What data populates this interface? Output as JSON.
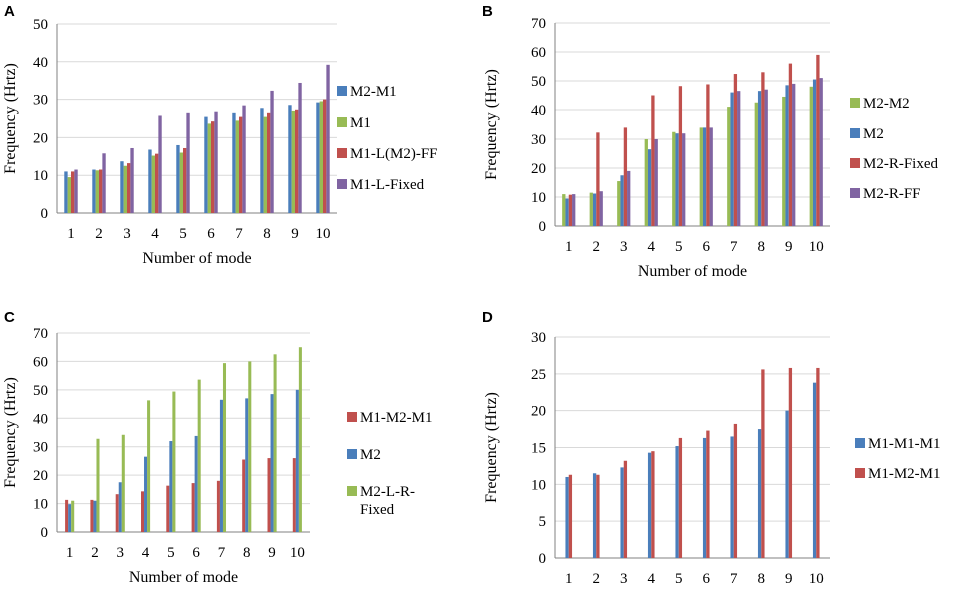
{
  "chart_data": [
    {
      "panel": "A",
      "type": "bar",
      "xlabel": "Number of mode",
      "ylabel": "Frequency (Hrtz)",
      "ylim": [
        0,
        50
      ],
      "yticks": [
        "0",
        "10",
        "20",
        "30",
        "40",
        "50"
      ],
      "categories": [
        "1",
        "2",
        "3",
        "4",
        "5",
        "6",
        "7",
        "8",
        "9",
        "10"
      ],
      "series": [
        {
          "name": "M2-M1",
          "color": "#4a7ebb",
          "values": [
            11,
            11.5,
            13.7,
            16.8,
            18,
            25.5,
            26.5,
            27.7,
            28.5,
            29.2
          ]
        },
        {
          "name": "M1",
          "color": "#98bb55",
          "values": [
            9.5,
            11.3,
            12.5,
            15.2,
            16,
            23.7,
            24.5,
            25.5,
            27,
            29.5
          ]
        },
        {
          "name": "M1-L(M2)-FF",
          "color": "#c0504d",
          "values": [
            11,
            11.5,
            13.2,
            15.7,
            17.2,
            24.3,
            25.5,
            26.5,
            27.3,
            30
          ]
        },
        {
          "name": "M1-L-Fixed",
          "color": "#8064a2",
          "values": [
            11.5,
            15.8,
            17.2,
            25.8,
            26.5,
            26.8,
            28.4,
            32.3,
            34.4,
            39.2
          ]
        }
      ]
    },
    {
      "panel": "B",
      "type": "bar",
      "xlabel": "Number of mode",
      "ylabel": "Frequency (Hrtz)",
      "ylim": [
        0,
        70
      ],
      "yticks": [
        "0",
        "10",
        "20",
        "30",
        "40",
        "50",
        "60",
        "70"
      ],
      "categories": [
        "1",
        "2",
        "3",
        "4",
        "5",
        "6",
        "7",
        "8",
        "9",
        "10"
      ],
      "series": [
        {
          "name": "M2-M2",
          "color": "#98bb55",
          "values": [
            11,
            11.5,
            15.5,
            30,
            32.5,
            34,
            41,
            42.5,
            44.5,
            48
          ]
        },
        {
          "name": "M2",
          "color": "#4a7ebb",
          "values": [
            9.5,
            11.2,
            17.5,
            26.5,
            32,
            34,
            46,
            46.5,
            48.5,
            50.5
          ]
        },
        {
          "name": "M2-R-Fixed",
          "color": "#c0504d",
          "values": [
            10.8,
            32.3,
            34,
            45,
            48.2,
            48.8,
            52.4,
            53,
            56,
            59
          ]
        },
        {
          "name": "M2-R-FF",
          "color": "#8064a2",
          "values": [
            11,
            12,
            19,
            30,
            32,
            34,
            46.5,
            47,
            49,
            51
          ]
        }
      ]
    },
    {
      "panel": "C",
      "type": "bar",
      "xlabel": "Number of mode",
      "ylabel": "Frequency (Hrtz)",
      "ylim": [
        0,
        70
      ],
      "yticks": [
        "0",
        "10",
        "20",
        "30",
        "40",
        "50",
        "60",
        "70"
      ],
      "categories": [
        "1",
        "2",
        "3",
        "4",
        "5",
        "6",
        "7",
        "8",
        "9",
        "10"
      ],
      "series": [
        {
          "name": "M1-M2-M1",
          "color": "#c0504d",
          "values": [
            11.3,
            11.3,
            13.3,
            14.3,
            16.3,
            17.2,
            18,
            25.5,
            26,
            26
          ]
        },
        {
          "name": "M2",
          "color": "#4a7ebb",
          "values": [
            9.8,
            11,
            17.5,
            26.5,
            32,
            33.8,
            46.5,
            47,
            48.5,
            50
          ]
        },
        {
          "name": "M2-L-R-Fixed",
          "color": "#98bb55",
          "values": [
            11,
            32.8,
            34.2,
            46.3,
            49.4,
            53.6,
            59.4,
            60,
            62.5,
            65
          ]
        }
      ]
    },
    {
      "panel": "D",
      "type": "bar",
      "xlabel": "Number of mode",
      "ylabel": "Frequency (Hrtz)",
      "ylim": [
        0,
        30
      ],
      "yticks": [
        "0",
        "5",
        "10",
        "15",
        "20",
        "25",
        "30"
      ],
      "categories": [
        "1",
        "2",
        "3",
        "4",
        "5",
        "6",
        "7",
        "8",
        "9",
        "10"
      ],
      "series": [
        {
          "name": "M1-M1-M1",
          "color": "#4a7ebb",
          "values": [
            11,
            11.5,
            12.3,
            14.3,
            15.2,
            16.3,
            16.5,
            17.5,
            20,
            23.8
          ]
        },
        {
          "name": "M1-M2-M1",
          "color": "#c0504d",
          "values": [
            11.3,
            11.3,
            13.2,
            14.5,
            16.3,
            17.3,
            18.2,
            25.6,
            25.8,
            25.8
          ]
        }
      ]
    }
  ]
}
